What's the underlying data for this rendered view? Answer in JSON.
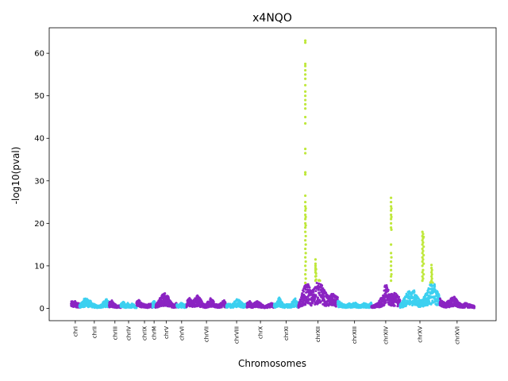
{
  "chart_data": {
    "type": "scatter",
    "title": "x4NQO",
    "xlabel": "Chromosomes",
    "ylabel": "-log10(pval)",
    "ylim": [
      -2.9,
      66
    ],
    "yticks": [
      0,
      10,
      20,
      30,
      40,
      50,
      60
    ],
    "grid": false,
    "legend": "none",
    "colors": {
      "odd": "#8b24c2",
      "even": "#3cd0f0",
      "significant": "#bfe83b"
    },
    "significance_threshold": 6,
    "chromosomes": [
      {
        "name": "chrI",
        "start": 0,
        "end": 230
      },
      {
        "name": "chrII",
        "start": 230,
        "end": 1043
      },
      {
        "name": "chrIII",
        "start": 1043,
        "end": 1360
      },
      {
        "name": "chrIV",
        "start": 1360,
        "end": 1792
      },
      {
        "name": "chrIX",
        "start": 1792,
        "end": 2232
      },
      {
        "name": "chrM",
        "start": 2232,
        "end": 2318
      },
      {
        "name": "chrV",
        "start": 2318,
        "end": 2895
      },
      {
        "name": "chrVI",
        "start": 2895,
        "end": 3165
      },
      {
        "name": "chrVII",
        "start": 3165,
        "end": 4256
      },
      {
        "name": "chrVIII",
        "start": 4256,
        "end": 4818
      },
      {
        "name": "chrX",
        "start": 4818,
        "end": 5563
      },
      {
        "name": "chrXI",
        "start": 5563,
        "end": 6230
      },
      {
        "name": "chrXII",
        "start": 6230,
        "end": 7308
      },
      {
        "name": "chrXIII",
        "start": 7308,
        "end": 8232
      },
      {
        "name": "chrXIV",
        "start": 8232,
        "end": 9016
      },
      {
        "name": "chrXV",
        "start": 9016,
        "end": 10107
      },
      {
        "name": "chrXVI",
        "start": 10107,
        "end": 11055
      }
    ],
    "xlim": [
      -600,
      11650
    ],
    "profile": [
      {
        "chr": "chrI",
        "levels": [
          1.5,
          2.0,
          1.2,
          1.8,
          1.0,
          1.6,
          1.1
        ]
      },
      {
        "chr": "chrII",
        "levels": [
          0.8,
          1.5,
          2.5,
          2.2,
          1.8,
          1.2,
          0.8,
          0.6,
          0.9,
          1.6,
          2.2,
          1.4
        ]
      },
      {
        "chr": "chrIII",
        "levels": [
          1.6,
          2.0,
          1.0,
          0.6,
          0.8
        ]
      },
      {
        "chr": "chrIV",
        "levels": [
          1.0,
          1.4,
          1.6,
          1.2,
          0.8,
          1.4,
          0.9,
          0.7,
          1.2,
          1.0,
          0.6,
          0.5
        ]
      },
      {
        "chr": "chrIX",
        "levels": [
          1.6,
          2.0,
          1.2,
          1.0,
          0.8,
          1.4,
          1.0
        ]
      },
      {
        "chr": "chrM",
        "levels": [
          1.4,
          2.0,
          1.2
        ]
      },
      {
        "chr": "chrV",
        "levels": [
          1.0,
          1.6,
          2.6,
          3.4,
          3.8,
          3.2,
          2.0,
          1.2,
          0.8,
          1.6
        ]
      },
      {
        "chr": "chrVI",
        "levels": [
          1.0,
          0.8,
          1.4,
          1.2,
          0.9,
          1.0
        ]
      },
      {
        "chr": "chrVII",
        "levels": [
          1.4,
          2.8,
          1.6,
          2.2,
          3.2,
          2.6,
          1.4,
          0.8,
          1.6,
          2.4,
          1.8,
          1.0,
          0.8,
          1.4,
          2.0,
          1.2
        ]
      },
      {
        "chr": "chrVIII",
        "levels": [
          0.8,
          1.2,
          0.9,
          1.8,
          2.4,
          1.6,
          0.9,
          1.2
        ]
      },
      {
        "chr": "chrX",
        "levels": [
          1.2,
          1.8,
          1.0,
          1.4,
          1.8,
          1.2,
          0.8,
          0.6,
          1.0,
          1.4,
          1.0
        ]
      },
      {
        "chr": "chrXI",
        "levels": [
          1.0,
          1.6,
          2.6,
          1.4,
          0.8,
          1.2,
          0.9,
          1.8,
          2.4,
          1.0
        ]
      },
      {
        "chr": "chrXII",
        "levels": [
          1.0,
          2.5,
          5.0,
          6.0,
          5.5,
          4.0,
          5.0,
          6.0,
          7.0,
          5.5,
          4.2,
          3.2,
          2.8,
          3.6,
          3.0,
          2.6
        ]
      },
      {
        "chr": "chrXIII",
        "levels": [
          2.0,
          1.4,
          1.0,
          0.8,
          1.2,
          0.9,
          1.5,
          1.0,
          0.7,
          1.3,
          1.1,
          0.8,
          1.4
        ]
      },
      {
        "chr": "chrXIV",
        "levels": [
          0.5,
          0.8,
          1.2,
          2.0,
          3.6,
          6.0,
          4.2,
          3.4,
          3.8,
          3.2,
          2.6
        ]
      },
      {
        "chr": "chrXV",
        "levels": [
          0.9,
          1.6,
          2.8,
          3.6,
          4.2,
          3.8,
          4.4,
          3.2,
          2.4,
          1.8,
          2.6,
          3.4,
          4.6,
          6.2,
          6.5,
          5.6,
          4.0,
          3.0
        ]
      },
      {
        "chr": "chrXVI",
        "levels": [
          2.4,
          1.6,
          1.2,
          1.8,
          2.4,
          2.8,
          2.0,
          1.2,
          0.8,
          1.4,
          1.0,
          0.8,
          0.6
        ]
      }
    ],
    "significant_points": [
      {
        "pos": 6420,
        "values": [
          6,
          8,
          10,
          12,
          14,
          16,
          18,
          19,
          20,
          21,
          22,
          23,
          24,
          25,
          26.5,
          31.5,
          32,
          36.5,
          37.5,
          43.5,
          45,
          47,
          48,
          49,
          50,
          51,
          52.5,
          54,
          55,
          56,
          57,
          57.5,
          62.5,
          63
        ]
      },
      {
        "pos": 6432,
        "values": [
          7,
          9,
          11,
          13,
          15,
          17,
          19.5,
          21.5,
          23.5
        ]
      },
      {
        "pos": 6700,
        "values": [
          6.5,
          7.5,
          8.5,
          9,
          9.5,
          10,
          10.5,
          11.5
        ]
      },
      {
        "pos": 6715,
        "values": [
          6.8,
          7.6,
          8.2,
          9.2
        ]
      },
      {
        "pos": 8770,
        "values": [
          6.5,
          7.5,
          9,
          10,
          11,
          13,
          15,
          19,
          20,
          21,
          22,
          23,
          24,
          25,
          26
        ]
      },
      {
        "pos": 8780,
        "values": [
          8,
          12,
          18.5,
          21.5,
          23.5
        ]
      },
      {
        "pos": 9630,
        "values": [
          6.5,
          7.5,
          8.5,
          10,
          11,
          12,
          13,
          14,
          15,
          16,
          17,
          18
        ]
      },
      {
        "pos": 9648,
        "values": [
          7,
          9,
          11.5,
          13.5,
          15.5,
          16.5,
          17.5
        ]
      },
      {
        "pos": 9664,
        "values": [
          8,
          10.5,
          12.5,
          14.5,
          16.8
        ]
      },
      {
        "pos": 9880,
        "values": [
          6.5,
          7.5,
          8.5,
          9.5,
          10.2
        ]
      },
      {
        "pos": 9892,
        "values": [
          7,
          8,
          9
        ]
      }
    ]
  }
}
